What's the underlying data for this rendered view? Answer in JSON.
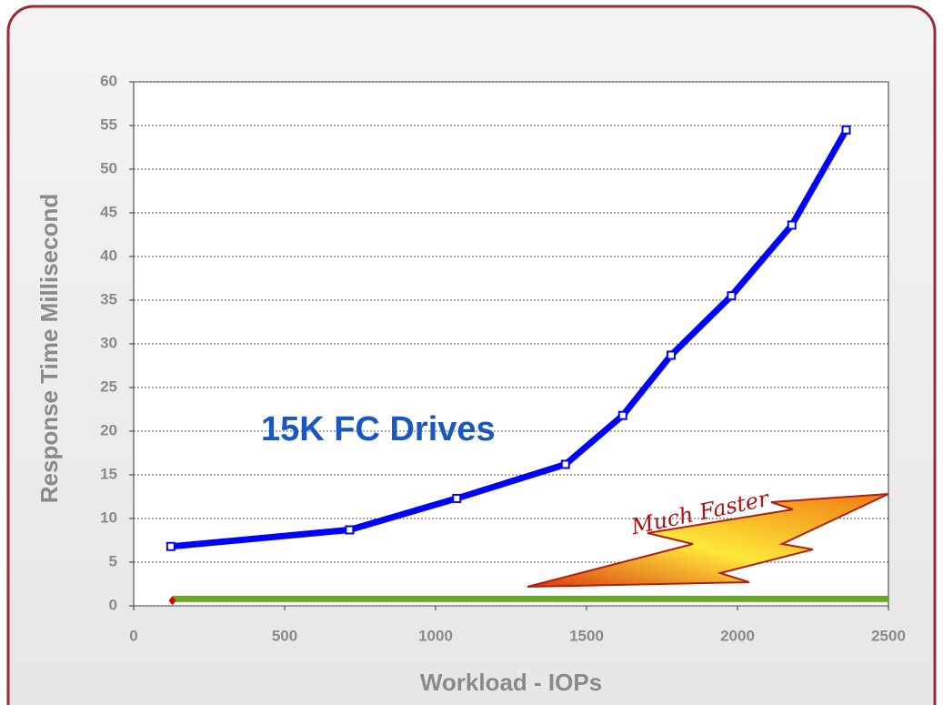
{
  "chart_data": {
    "type": "line",
    "x_label": "Workload - IOPs",
    "y_label": "Response Time Millisecond",
    "annotations": [
      "15K FC Drives",
      "Much Faster"
    ],
    "xlim": [
      0,
      2500
    ],
    "xticks": [
      0,
      500,
      1000,
      1500,
      2000,
      2500
    ],
    "ylim": [
      0,
      60
    ],
    "yticks": [
      0,
      5,
      10,
      15,
      20,
      25,
      30,
      35,
      40,
      45,
      50,
      55,
      60
    ],
    "grid": true,
    "series": [
      {
        "color": "#0000ff",
        "marker": "square",
        "x": [
          123,
          715,
          1070,
          1430,
          1620,
          1780,
          1980,
          2180,
          2360
        ],
        "values": [
          6.8,
          8.7,
          12.3,
          16.2,
          21.8,
          28.7,
          35.5,
          43.6,
          54.5
        ]
      },
      {
        "color": "#66aa22",
        "marker": "none",
        "x": [
          130,
          2500
        ],
        "values": [
          0.8,
          0.8
        ]
      },
      {
        "color": "#e00000",
        "marker": "diamond",
        "x": [
          128
        ],
        "values": [
          0.6
        ]
      }
    ]
  }
}
